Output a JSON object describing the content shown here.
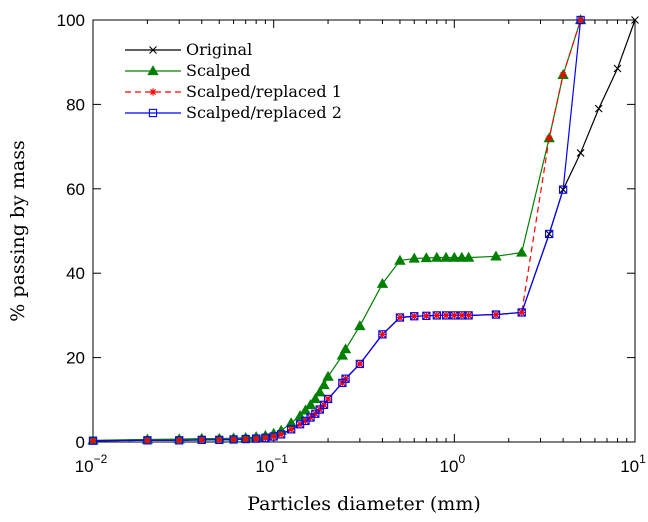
{
  "chart_data": {
    "type": "line",
    "xscale": "log",
    "xlabel": "Particles diameter (mm)",
    "ylabel": "% passing by mass",
    "xlim": [
      0.01,
      10
    ],
    "ylim": [
      0,
      100
    ],
    "xticks": [
      0.01,
      0.1,
      1,
      10
    ],
    "xtick_labels": [
      {
        "base": "10",
        "exp": "−2"
      },
      {
        "base": "10",
        "exp": "−1"
      },
      {
        "base": "10",
        "exp": "0"
      },
      {
        "base": "10",
        "exp": "1"
      }
    ],
    "yticks": [
      0,
      20,
      40,
      60,
      80,
      100
    ],
    "grid": false,
    "legend_position": "top-left",
    "series": [
      {
        "name": "Original",
        "color": "#000000",
        "dash": "solid",
        "marker": "x",
        "x": [
          0.01,
          0.02,
          0.03,
          0.04,
          0.05,
          0.06,
          0.07,
          0.08,
          0.09,
          0.1,
          0.11,
          0.125,
          0.14,
          0.15,
          0.16,
          0.17,
          0.18,
          0.19,
          0.2,
          0.24,
          0.25,
          0.3,
          0.4,
          0.5,
          0.6,
          0.7,
          0.8,
          0.9,
          1.0,
          1.1,
          1.2,
          1.7,
          2.36,
          3.35,
          4.0,
          5.0,
          6.3,
          8.0,
          10.0
        ],
        "y": [
          0.3,
          0.4,
          0.4,
          0.5,
          0.5,
          0.6,
          0.7,
          0.8,
          1.0,
          1.3,
          1.8,
          3.0,
          4.2,
          5.0,
          5.8,
          6.7,
          7.7,
          8.8,
          10.2,
          14.0,
          15.0,
          18.5,
          25.5,
          29.5,
          29.8,
          29.9,
          30.0,
          30.0,
          30.0,
          30.0,
          30.0,
          30.2,
          30.7,
          49.3,
          59.8,
          68.5,
          79.0,
          88.5,
          100.0
        ]
      },
      {
        "name": "Scalped",
        "color": "#008000",
        "dash": "solid",
        "marker": "triangle",
        "x": [
          0.01,
          0.02,
          0.03,
          0.04,
          0.05,
          0.06,
          0.07,
          0.08,
          0.09,
          0.1,
          0.11,
          0.125,
          0.14,
          0.15,
          0.16,
          0.17,
          0.18,
          0.19,
          0.2,
          0.24,
          0.25,
          0.3,
          0.4,
          0.5,
          0.6,
          0.7,
          0.8,
          0.9,
          1.0,
          1.1,
          1.2,
          1.7,
          2.36,
          3.35,
          4.0,
          5.0
        ],
        "y": [
          0.4,
          0.6,
          0.7,
          0.8,
          0.8,
          0.9,
          1.0,
          1.2,
          1.5,
          2.0,
          2.7,
          4.5,
          6.2,
          7.5,
          8.8,
          10.2,
          11.8,
          13.5,
          15.5,
          20.5,
          22.0,
          27.5,
          37.5,
          43.0,
          43.5,
          43.6,
          43.7,
          43.7,
          43.7,
          43.7,
          43.7,
          44.0,
          44.9,
          72.0,
          87.0,
          100.0
        ]
      },
      {
        "name": "Scalped/replaced 1",
        "color": "#ff0000",
        "dash": "dashed",
        "marker": "asterisk",
        "x": [
          0.01,
          0.02,
          0.03,
          0.04,
          0.05,
          0.06,
          0.07,
          0.08,
          0.09,
          0.1,
          0.11,
          0.125,
          0.14,
          0.15,
          0.16,
          0.17,
          0.18,
          0.19,
          0.2,
          0.24,
          0.25,
          0.3,
          0.4,
          0.5,
          0.6,
          0.7,
          0.8,
          0.9,
          1.0,
          1.1,
          1.2,
          1.7,
          2.36,
          3.35,
          4.0,
          5.0
        ],
        "y": [
          0.3,
          0.4,
          0.4,
          0.5,
          0.5,
          0.6,
          0.7,
          0.8,
          1.0,
          1.3,
          1.8,
          3.0,
          4.2,
          5.0,
          5.8,
          6.7,
          7.7,
          8.8,
          10.2,
          14.0,
          15.0,
          18.5,
          25.5,
          29.5,
          29.8,
          29.9,
          30.0,
          30.0,
          30.0,
          30.0,
          30.0,
          30.2,
          30.7,
          72.0,
          87.0,
          100.0
        ]
      },
      {
        "name": "Scalped/replaced 2",
        "color": "#0000ff",
        "dash": "solid",
        "marker": "square",
        "x": [
          0.01,
          0.02,
          0.03,
          0.04,
          0.05,
          0.06,
          0.07,
          0.08,
          0.09,
          0.1,
          0.11,
          0.125,
          0.14,
          0.15,
          0.16,
          0.17,
          0.18,
          0.19,
          0.2,
          0.24,
          0.25,
          0.3,
          0.4,
          0.5,
          0.6,
          0.7,
          0.8,
          0.9,
          1.0,
          1.1,
          1.2,
          1.7,
          2.36,
          3.35,
          4.0,
          5.0
        ],
        "y": [
          0.3,
          0.4,
          0.4,
          0.5,
          0.5,
          0.6,
          0.7,
          0.8,
          1.0,
          1.3,
          1.8,
          3.0,
          4.2,
          5.0,
          5.8,
          6.7,
          7.7,
          8.8,
          10.2,
          14.0,
          15.0,
          18.5,
          25.5,
          29.5,
          29.8,
          29.9,
          30.0,
          30.0,
          30.0,
          30.0,
          30.0,
          30.2,
          30.7,
          49.3,
          59.8,
          100.0
        ]
      }
    ]
  }
}
